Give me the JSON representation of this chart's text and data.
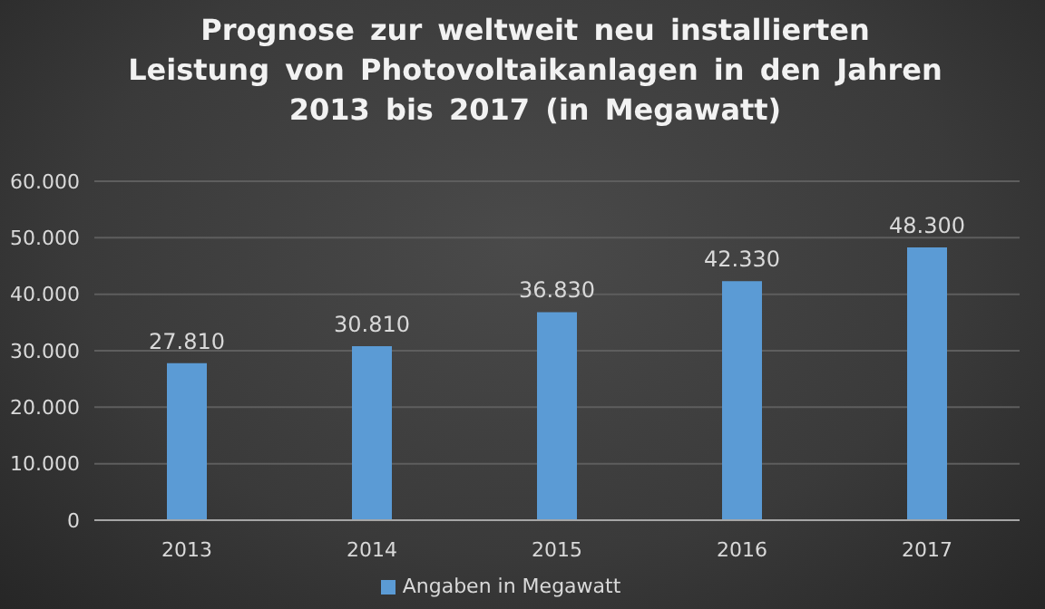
{
  "chart_data": {
    "type": "bar",
    "title": "Prognose zur weltweit neu installierten Leistung von Photovoltaikanlagen in den Jahren 2013 bis 2017 (in Megawatt)",
    "categories": [
      "2013",
      "2014",
      "2015",
      "2016",
      "2017"
    ],
    "series": [
      {
        "name": "Angaben in Megawatt",
        "color": "#5b9bd5",
        "values": [
          27810,
          30810,
          36830,
          42330,
          48300
        ],
        "value_labels": [
          "27.810",
          "30.810",
          "36.830",
          "42.330",
          "48.300"
        ]
      }
    ],
    "ylim": [
      0,
      60000
    ],
    "yticks": [
      {
        "value": 0,
        "label": "0"
      },
      {
        "value": 10000,
        "label": "10.000"
      },
      {
        "value": 20000,
        "label": "20.000"
      },
      {
        "value": 30000,
        "label": "30.000"
      },
      {
        "value": 40000,
        "label": "40.000"
      },
      {
        "value": 50000,
        "label": "50.000"
      },
      {
        "value": 60000,
        "label": "60.000"
      }
    ],
    "grid": "y",
    "legend": "bottom"
  }
}
